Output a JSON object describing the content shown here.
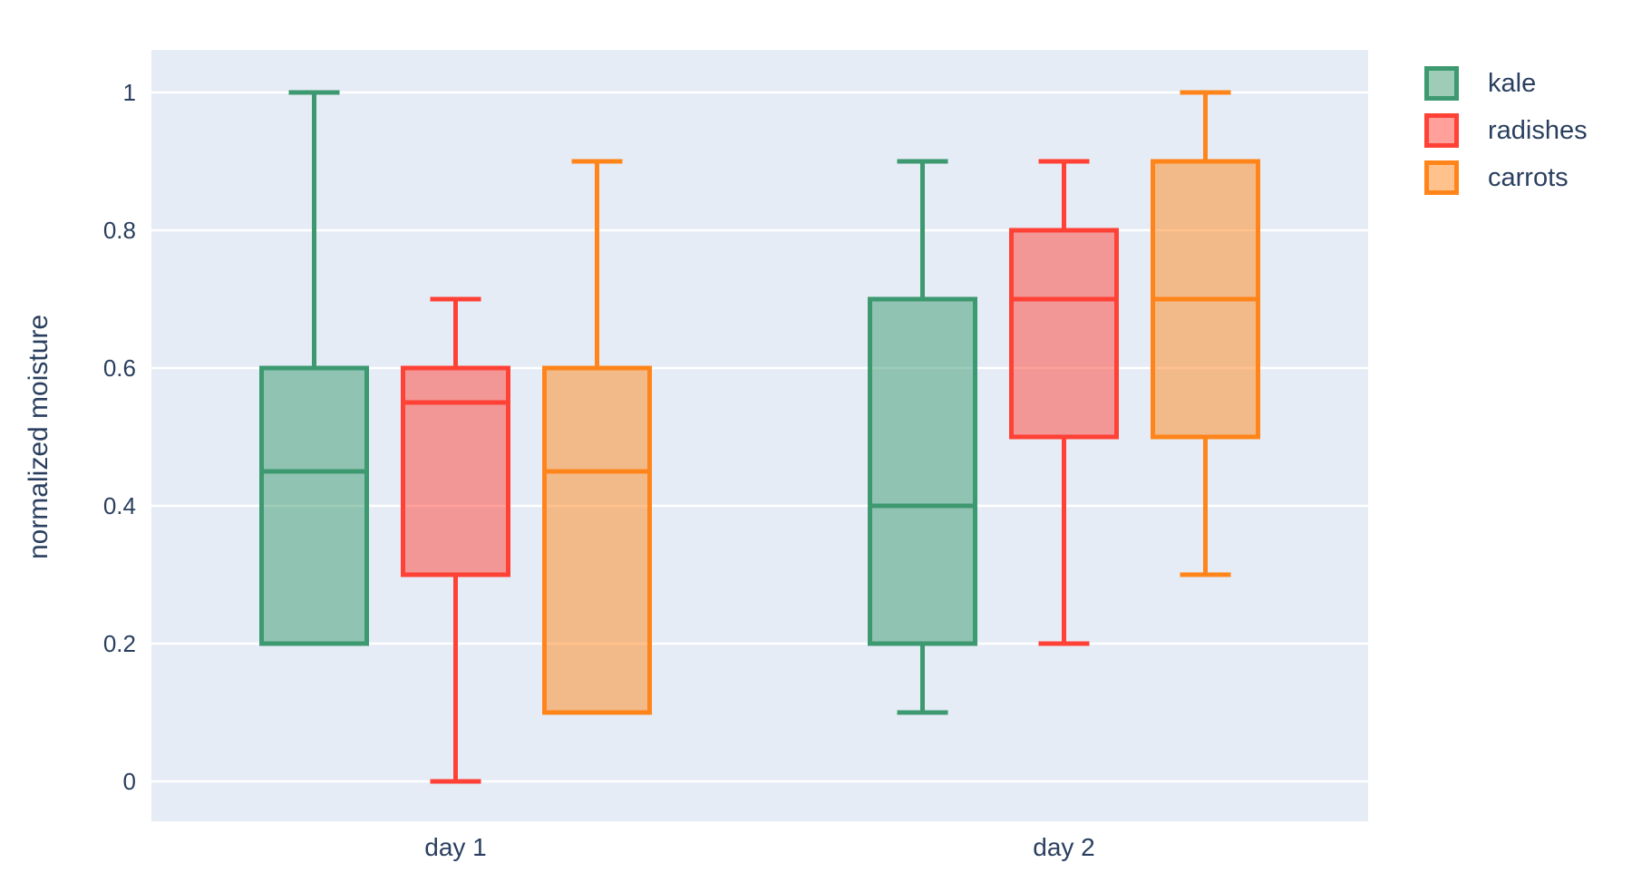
{
  "colors": {
    "page_bg": "#ffffff",
    "plot_bg": "#e5ecf6",
    "grid": "#ffffff",
    "text": "#2a3f5f"
  },
  "chart_data": {
    "type": "box",
    "title": "",
    "xlabel": "",
    "ylabel": "normalized moisture",
    "categories": [
      "day 1",
      "day 2"
    ],
    "ytick_values": [
      0,
      0.2,
      0.4,
      0.6,
      0.8,
      1
    ],
    "ytick_labels": [
      "0",
      "0.2",
      "0.4",
      "0.6",
      "0.8",
      "1"
    ],
    "ylim": [
      -0.062,
      1.062
    ],
    "grid": true,
    "legend_position": "top-right-outside",
    "series": [
      {
        "name": "kale",
        "color": "#3D9970",
        "boxes": [
          {
            "category": "day 1",
            "min": 0.2,
            "q1": 0.2,
            "median": 0.45,
            "q3": 0.6,
            "max": 1.0
          },
          {
            "category": "day 2",
            "min": 0.1,
            "q1": 0.2,
            "median": 0.4,
            "q3": 0.7,
            "max": 0.9
          }
        ]
      },
      {
        "name": "radishes",
        "color": "#FF4136",
        "boxes": [
          {
            "category": "day 1",
            "min": 0.0,
            "q1": 0.3,
            "median": 0.55,
            "q3": 0.6,
            "max": 0.7
          },
          {
            "category": "day 2",
            "min": 0.2,
            "q1": 0.5,
            "median": 0.7,
            "q3": 0.8,
            "max": 0.9
          }
        ]
      },
      {
        "name": "carrots",
        "color": "#FF851B",
        "boxes": [
          {
            "category": "day 1",
            "min": 0.1,
            "q1": 0.1,
            "median": 0.45,
            "q3": 0.6,
            "max": 0.9
          },
          {
            "category": "day 2",
            "min": 0.3,
            "q1": 0.5,
            "median": 0.7,
            "q3": 0.9,
            "max": 1.0
          }
        ]
      }
    ]
  }
}
